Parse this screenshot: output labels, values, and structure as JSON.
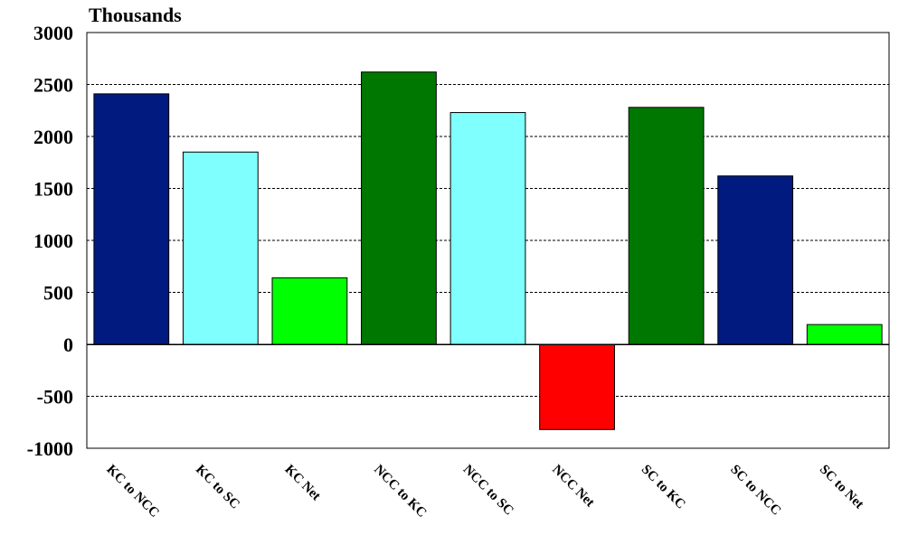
{
  "chart_data": {
    "type": "bar",
    "unit_label": "Thousands",
    "title": "",
    "xlabel": "",
    "ylabel": "",
    "categories": [
      "KC to NCC",
      "KC to SC",
      "KC Net",
      "NCC to KC",
      "NCC to SC",
      "NCC Net",
      "SC to KC",
      "SC to NCC",
      "SC to Net"
    ],
    "values": [
      2410,
      1850,
      640,
      2620,
      2230,
      -820,
      2280,
      1620,
      190
    ],
    "bar_colors": [
      "#001a80",
      "#80ffff",
      "#00ff00",
      "#007700",
      "#80ffff",
      "#ff0000",
      "#007700",
      "#001a80",
      "#00ff00"
    ],
    "ylim": [
      -1000,
      3000
    ],
    "yticks": [
      -1000,
      -500,
      0,
      500,
      1000,
      1500,
      2000,
      2500,
      3000
    ],
    "grid": true,
    "legend": "none"
  }
}
